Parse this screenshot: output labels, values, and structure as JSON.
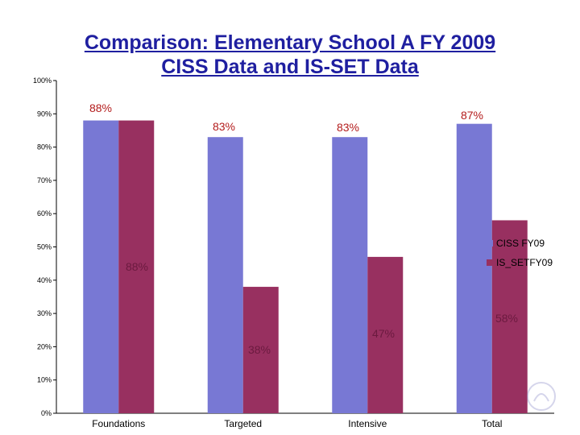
{
  "colors": {
    "series1": "#7878d4",
    "series2": "#983060",
    "title": "#1f1fa0",
    "label_dark": "#b31b1b",
    "label_light": "#6b1a3f"
  },
  "chart_data": {
    "type": "bar",
    "title_lines": [
      "Comparison: Elementary School A FY 2009",
      "CISS Data and IS-SET Data"
    ],
    "categories": [
      "Foundations",
      "Targeted",
      "Intensive",
      "Total"
    ],
    "series": [
      {
        "name": "CISS FY09",
        "values": [
          88,
          83,
          83,
          87
        ],
        "labels": [
          "88%",
          "83%",
          "83%",
          "87%"
        ]
      },
      {
        "name": "IS_SETFY09",
        "values": [
          88,
          38,
          47,
          58
        ],
        "labels": [
          "88%",
          "38%",
          "47%",
          "58%"
        ]
      }
    ],
    "ylim": [
      0,
      100
    ],
    "y_ticks": [
      "0%",
      "10%",
      "20%",
      "30%",
      "40%",
      "50%",
      "60%",
      "70%",
      "80%",
      "90%",
      "100%"
    ],
    "xlabel": "",
    "ylabel": "",
    "grid": false,
    "legend_position": "right"
  }
}
